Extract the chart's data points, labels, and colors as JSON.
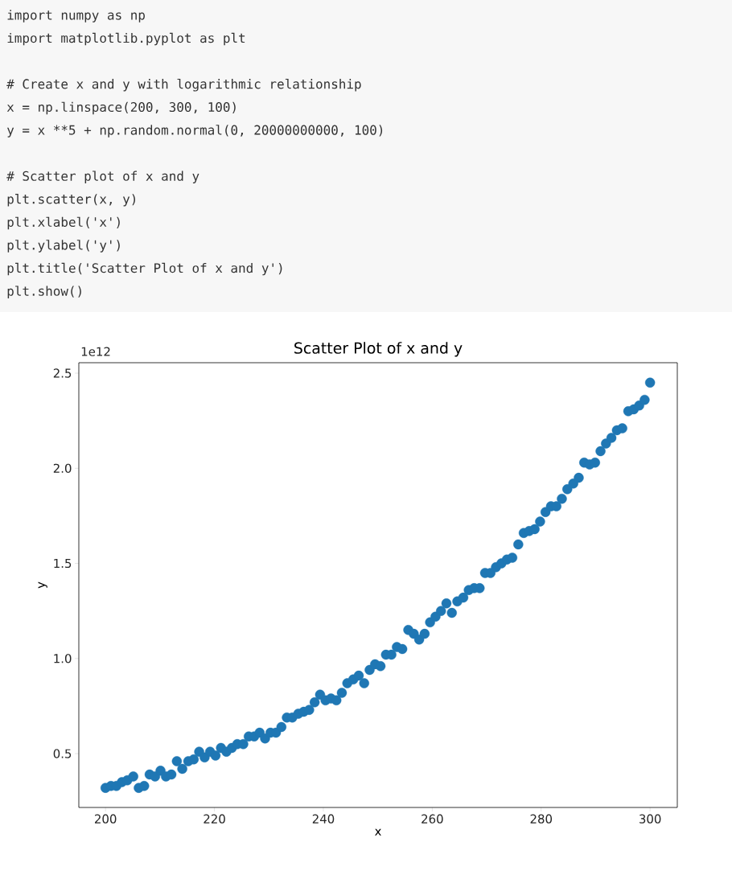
{
  "chart_data": {
    "type": "scatter",
    "title": "Scatter Plot of x and y",
    "xlabel": "x",
    "ylabel": "y",
    "annotations": [
      "import numpy as np",
      "import matplotlib.pyplot as plt",
      "# Create x and y with logarithmic relationship",
      "x = np.linspace(200, 300, 100)",
      "y = x **5 + np.random.normal(0, 20000000000, 100)",
      "# Scatter plot of x and y",
      "plt.scatter(x, y)",
      "plt.xlabel('x')",
      "plt.ylabel('y')",
      "plt.title('Scatter Plot of x and y')",
      "plt.show()",
      "1e12"
    ],
    "x": [
      200.0,
      201.0,
      202.0,
      203.0,
      204.0,
      205.1,
      206.1,
      207.1,
      208.1,
      209.1,
      210.1,
      211.1,
      212.1,
      213.1,
      214.1,
      215.2,
      216.2,
      217.2,
      218.2,
      219.2,
      220.2,
      221.2,
      222.2,
      223.2,
      224.2,
      225.3,
      226.3,
      227.3,
      228.3,
      229.3,
      230.3,
      231.3,
      232.3,
      233.3,
      234.3,
      235.4,
      236.4,
      237.4,
      238.4,
      239.4,
      240.4,
      241.4,
      242.4,
      243.4,
      244.4,
      245.5,
      246.5,
      247.5,
      248.5,
      249.5,
      250.5,
      251.5,
      252.5,
      253.5,
      254.5,
      255.6,
      256.6,
      257.6,
      258.6,
      259.6,
      260.6,
      261.6,
      262.6,
      263.6,
      264.6,
      265.7,
      266.7,
      267.7,
      268.7,
      269.7,
      270.7,
      271.7,
      272.7,
      273.7,
      274.7,
      275.8,
      276.8,
      277.8,
      278.8,
      279.8,
      280.8,
      281.8,
      282.8,
      283.8,
      284.8,
      285.9,
      286.9,
      287.9,
      288.9,
      289.9,
      290.9,
      291.9,
      292.9,
      293.9,
      294.9,
      296.0,
      297.0,
      298.0,
      299.0,
      300.0
    ],
    "values": [
      0.32,
      0.33,
      0.33,
      0.35,
      0.36,
      0.38,
      0.32,
      0.33,
      0.39,
      0.38,
      0.41,
      0.38,
      0.39,
      0.46,
      0.42,
      0.46,
      0.47,
      0.51,
      0.48,
      0.51,
      0.49,
      0.53,
      0.51,
      0.53,
      0.55,
      0.55,
      0.59,
      0.59,
      0.61,
      0.58,
      0.61,
      0.61,
      0.64,
      0.69,
      0.69,
      0.71,
      0.72,
      0.73,
      0.77,
      0.81,
      0.78,
      0.79,
      0.78,
      0.82,
      0.87,
      0.89,
      0.91,
      0.87,
      0.94,
      0.97,
      0.96,
      1.02,
      1.02,
      1.06,
      1.05,
      1.15,
      1.13,
      1.1,
      1.13,
      1.19,
      1.22,
      1.25,
      1.29,
      1.24,
      1.3,
      1.32,
      1.36,
      1.37,
      1.37,
      1.45,
      1.45,
      1.48,
      1.5,
      1.52,
      1.53,
      1.6,
      1.66,
      1.67,
      1.68,
      1.72,
      1.77,
      1.8,
      1.8,
      1.84,
      1.89,
      1.92,
      1.95,
      2.03,
      2.02,
      2.03,
      2.09,
      2.13,
      2.16,
      2.2,
      2.21,
      2.3,
      2.31,
      2.33,
      2.36,
      2.45
    ],
    "color": "#1f77b4",
    "xlim": [
      195.1,
      305.0
    ],
    "ylim": [
      0.217,
      2.555
    ],
    "xticks": [
      200,
      220,
      240,
      260,
      280,
      300
    ],
    "yticks": [
      {
        "value": 0.5,
        "label": "0.5"
      },
      {
        "value": 1.0,
        "label": "1.0"
      },
      {
        "value": 1.5,
        "label": "1.5"
      },
      {
        "value": 2.0,
        "label": "2.0"
      },
      {
        "value": 2.5,
        "label": "2.5"
      }
    ]
  }
}
